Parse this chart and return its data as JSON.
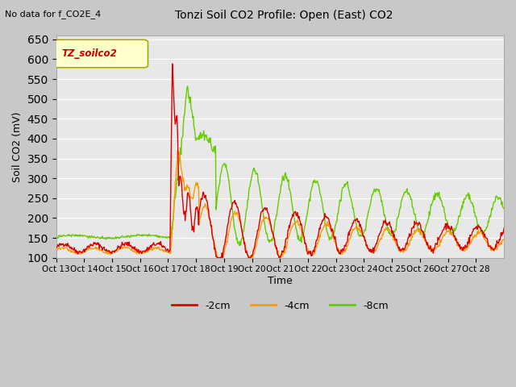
{
  "title": "Tonzi Soil CO2 Profile: Open (East) CO2",
  "subtitle": "No data for f_CO2E_4",
  "ylabel": "Soil CO2 (mV)",
  "xlabel": "Time",
  "ylim": [
    100,
    660
  ],
  "yticks": [
    100,
    150,
    200,
    250,
    300,
    350,
    400,
    450,
    500,
    550,
    600,
    650
  ],
  "xtick_labels": [
    "Oct 13",
    "Oct 14",
    "Oct 15",
    "Oct 16",
    "Oct 17",
    "Oct 18",
    "Oct 19",
    "Oct 20",
    "Oct 21",
    "Oct 22",
    "Oct 23",
    "Oct 24",
    "Oct 25",
    "Oct 26",
    "Oct 27",
    "Oct 28"
  ],
  "legend_label": "TZ_soilco2",
  "legend_bg": "#ffffcc",
  "series_labels": [
    "-2cm",
    "-4cm",
    "-8cm"
  ],
  "series_colors": [
    "#dd0000",
    "#ff9900",
    "#66cc00"
  ],
  "plot_bg": "#e8e8e8",
  "grid_color": "#ffffff",
  "fig_bg": "#c8c8c8"
}
